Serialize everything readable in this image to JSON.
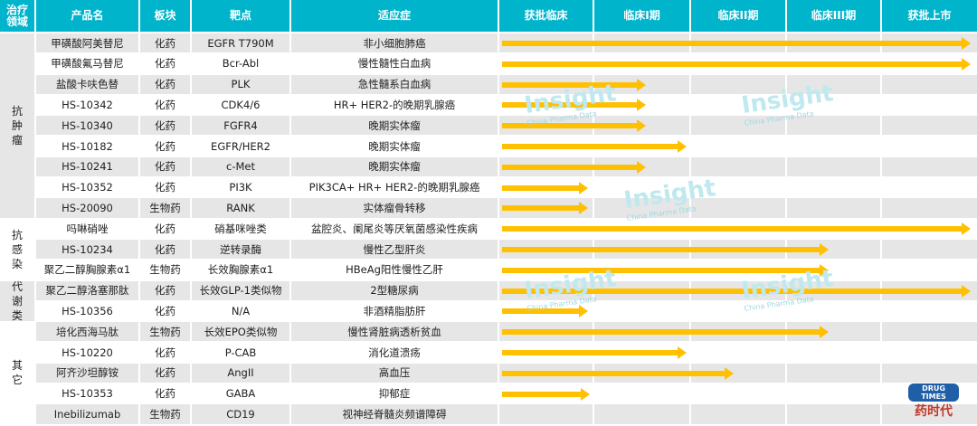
{
  "headers": [
    "治疗领域",
    "产品名",
    "板块",
    "靶点",
    "适应症",
    "获批临床",
    "临床I期",
    "临床II期",
    "临床III期",
    "获批上市"
  ],
  "categories": [
    {
      "label": "抗肿瘤",
      "start": 0,
      "span": 9
    },
    {
      "label": "抗感染",
      "start": 9,
      "span": 3
    },
    {
      "label": "代谢类",
      "start": 12,
      "span": 2
    },
    {
      "label": "其它",
      "start": 14,
      "span": 5
    }
  ],
  "rows": [
    {
      "name": "甲磺酸阿美替尼",
      "type": "化药",
      "target": "EGFR T790M",
      "indication": "非小细胞肺癌",
      "progress": 5.0
    },
    {
      "name": "甲磺酸氟马替尼",
      "type": "化药",
      "target": "Bcr-Abl",
      "indication": "慢性髓性白血病",
      "progress": 5.0
    },
    {
      "name": "盐酸卡呋色替",
      "type": "化药",
      "target": "PLK",
      "indication": "急性髓系白血病",
      "progress": 1.57
    },
    {
      "name": "HS-10342",
      "type": "化药",
      "target": "CDK4/6",
      "indication": "HR+ HER2-的晚期乳腺癌",
      "progress": 1.57
    },
    {
      "name": "HS-10340",
      "type": "化药",
      "target": "FGFR4",
      "indication": "晚期实体瘤",
      "progress": 1.57
    },
    {
      "name": "HS-10182",
      "type": "化药",
      "target": "EGFR/HER2",
      "indication": "晚期实体瘤",
      "progress": 2.0
    },
    {
      "name": "HS-10241",
      "type": "化药",
      "target": "c-Met",
      "indication": "晚期实体瘤",
      "progress": 1.57
    },
    {
      "name": "HS-10352",
      "type": "化药",
      "target": "PI3K",
      "indication": "PIK3CA+ HR+ HER2-的晚期乳腺癌",
      "progress": 0.96
    },
    {
      "name": "HS-20090",
      "type": "生物药",
      "target": "RANK",
      "indication": "实体瘤骨转移",
      "progress": 0.96
    },
    {
      "name": "吗啉硝唑",
      "type": "化药",
      "target": "硝基咪唑类",
      "indication": "盆腔炎、阑尾炎等厌氧菌感染性疾病",
      "progress": 5.0
    },
    {
      "name": "HS-10234",
      "type": "化药",
      "target": "逆转录酶",
      "indication": "慢性乙型肝炎",
      "progress": 3.5
    },
    {
      "name": "聚乙二醇胸腺素α1",
      "type": "生物药",
      "target": "长效胸腺素α1",
      "indication": "HBeAg阳性慢性乙肝",
      "progress": 3.5
    },
    {
      "name": "聚乙二醇洛塞那肽",
      "type": "化药",
      "target": "长效GLP-1类似物",
      "indication": "2型糖尿病",
      "progress": 5.0
    },
    {
      "name": "HS-10356",
      "type": "化药",
      "target": "N/A",
      "indication": "非酒精脂肪肝",
      "progress": 0.96
    },
    {
      "name": "培化西海马肽",
      "type": "生物药",
      "target": "长效EPO类似物",
      "indication": "慢性肾脏病透析贫血",
      "progress": 3.5
    },
    {
      "name": "HS-10220",
      "type": "化药",
      "target": "P-CAB",
      "indication": "消化道溃疡",
      "progress": 2.0
    },
    {
      "name": "阿齐沙坦醇铵",
      "type": "化药",
      "target": "AngII",
      "indication": "高血压",
      "progress": 2.5
    },
    {
      "name": "HS-10353",
      "type": "化药",
      "target": "GABA",
      "indication": "抑郁症",
      "progress": 0.98
    },
    {
      "name": "Inebilizumab",
      "type": "生物药",
      "target": "CD19",
      "indication": "视神经脊髓炎频谱障碍",
      "progress": 0
    }
  ],
  "watermark": {
    "title": "Insight",
    "subtitle": "China Pharma Data"
  },
  "logo": {
    "badge": "DRUG TIMES",
    "name": "药时代"
  },
  "colors": {
    "header": "#00b4cc",
    "arrow": "#ffc000",
    "row_alt": "#e6e6e6"
  }
}
